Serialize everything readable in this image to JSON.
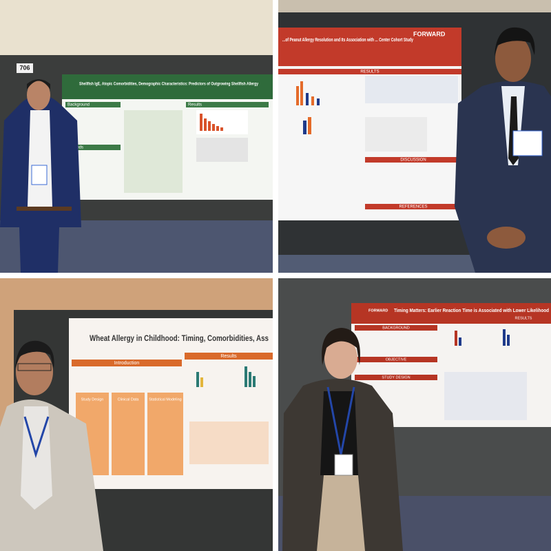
{
  "panels": [
    {
      "board_number": "706",
      "poster": {
        "title": "Shellfish IgE, Atopic Comorbidities, Demographic Characteristics: Predictors of Outgrowing Shellfish Allergy",
        "sections": [
          "Background",
          "Results",
          "Methods"
        ]
      }
    },
    {
      "poster": {
        "title": "...of Peanut Allergy Resolution and Its Association with ... Center Cohort Study",
        "logo": "FORWARD",
        "sections": [
          "RESULTS",
          "DISCUSSION",
          "REFERENCES"
        ]
      }
    },
    {
      "poster": {
        "title": "Wheat Allergy in Childhood: Timing, Comorbidities, Ass",
        "sections": [
          "Introduction",
          "Results",
          "Study Design",
          "Clinical Data",
          "Statistical Modeling"
        ]
      }
    },
    {
      "poster": {
        "title": "Timing Matters: Earlier Reaction Time is Associated with Lower Likelihood",
        "logo": "FORWARD",
        "sections": [
          "BACKGROUND",
          "RESULTS",
          "OBJECTIVE",
          "STUDY DESIGN"
        ]
      }
    }
  ]
}
